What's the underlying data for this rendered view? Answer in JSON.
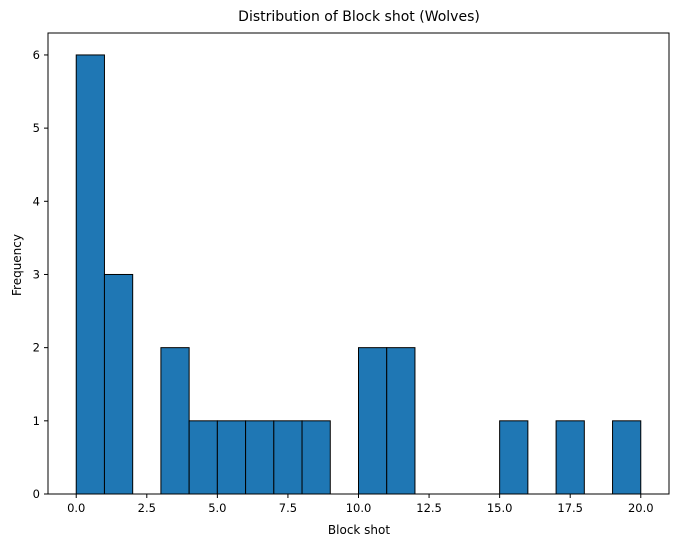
{
  "chart_data": {
    "type": "bar",
    "title": "Distribution of Block shot (Wolves)",
    "xlabel": "Block shot",
    "ylabel": "Frequency",
    "bin_edges": [
      0,
      1,
      2,
      3,
      4,
      5,
      6,
      7,
      8,
      9,
      10,
      11,
      12,
      13,
      14,
      15,
      16,
      17,
      18,
      19,
      20
    ],
    "values": [
      6,
      3,
      0,
      2,
      1,
      1,
      1,
      1,
      1,
      0,
      2,
      2,
      0,
      0,
      0,
      1,
      0,
      1,
      0,
      1
    ],
    "xlim": [
      -1,
      21
    ],
    "ylim": [
      0,
      6.3
    ],
    "x_ticks": [
      0,
      2.5,
      5,
      7.5,
      10,
      12.5,
      15,
      17.5,
      20
    ],
    "x_tick_labels": [
      "0.0",
      "2.5",
      "5.0",
      "7.5",
      "10.0",
      "12.5",
      "15.0",
      "17.5",
      "20.0"
    ],
    "y_ticks": [
      0,
      1,
      2,
      3,
      4,
      5,
      6
    ],
    "y_tick_labels": [
      "0",
      "1",
      "2",
      "3",
      "4",
      "5",
      "6"
    ],
    "bar_color": "#1f77b4",
    "edge_color": "#000000",
    "grid": false
  }
}
